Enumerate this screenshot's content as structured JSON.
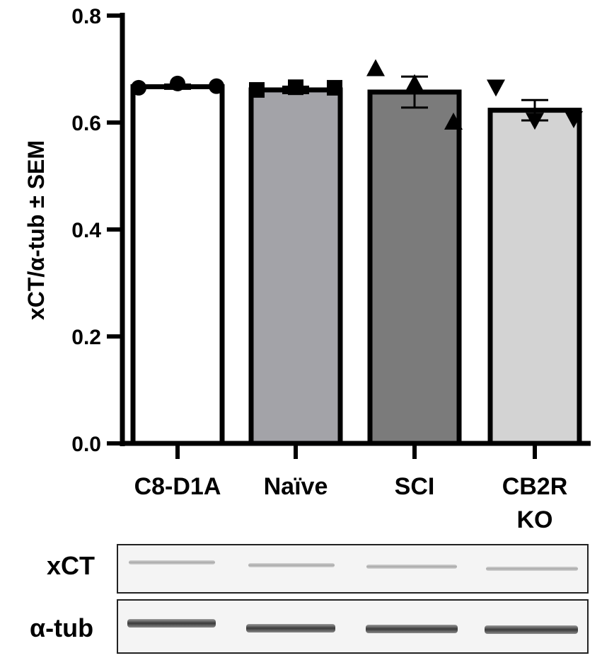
{
  "chart_data": {
    "type": "bar",
    "title": "",
    "ylabel": "xCT/α-tub ± SEM",
    "xlabel": "",
    "ylim": [
      0,
      0.8
    ],
    "yticks": [
      "0.0",
      "0.2",
      "0.4",
      "0.6",
      "0.8"
    ],
    "ytick_values": [
      0,
      0.2,
      0.4,
      0.6,
      0.8
    ],
    "grid": false,
    "categories": [
      "C8-D1A",
      "Naïve",
      "SCI",
      "CB2R KO"
    ],
    "category_lines": [
      [
        "C8-D1A"
      ],
      [
        "Naïve"
      ],
      [
        "SCI"
      ],
      [
        "CB2R",
        "KO"
      ]
    ],
    "values": [
      0.667,
      0.661,
      0.657,
      0.623
    ],
    "sem": [
      0.004,
      0.006,
      0.029,
      0.019
    ],
    "colors": [
      "#ffffff",
      "#a3a3a8",
      "#7b7b7b",
      "#d3d3d3"
    ],
    "markers": [
      "circle",
      "square",
      "triangle-up",
      "triangle-down"
    ],
    "points": [
      [
        0.665,
        0.673,
        0.668
      ],
      [
        0.661,
        0.666,
        0.665
      ],
      [
        0.7,
        0.672,
        0.6
      ],
      [
        0.667,
        0.605,
        0.608
      ]
    ]
  },
  "blot": {
    "labels": [
      "xCT",
      "α-tub"
    ]
  }
}
